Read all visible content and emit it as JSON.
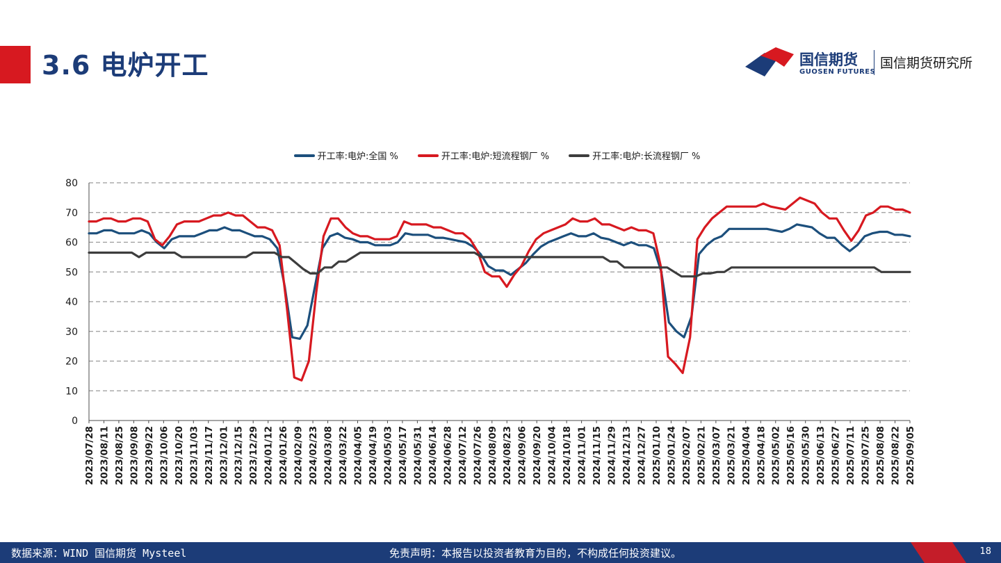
{
  "header": {
    "title": "3.6 电炉开工",
    "logo_cn": "国信期货",
    "logo_en": "GUOSEN FUTURES",
    "institute": "国信期货研究所",
    "brand_color": "#1c3c78",
    "accent_color": "#d71920"
  },
  "footer": {
    "source": "数据来源：WIND 国信期货 Mysteel",
    "disclaimer": "免责声明：本报告以投资者教育为目的，不构成任何投资建议。",
    "page_number": "18"
  },
  "chart_data": {
    "type": "line",
    "title": "",
    "xlabel": "",
    "ylabel": "",
    "ylim": [
      0,
      80
    ],
    "yticks": [
      0,
      10,
      20,
      30,
      40,
      50,
      60,
      70,
      80
    ],
    "grid": "horizontal dashed",
    "legend_position": "top",
    "x_tick_labels": [
      "2023/07/28",
      "2023/08/11",
      "2023/08/25",
      "2023/09/08",
      "2023/09/22",
      "2023/10/06",
      "2023/10/20",
      "2023/11/03",
      "2023/11/17",
      "2023/12/01",
      "2023/12/15",
      "2023/12/29",
      "2024/01/12",
      "2024/01/26",
      "2024/02/09",
      "2024/02/23",
      "2024/03/08",
      "2024/03/22",
      "2024/04/05",
      "2024/04/19",
      "2024/05/03",
      "2024/05/17",
      "2024/05/31",
      "2024/06/14",
      "2024/06/28",
      "2024/07/12",
      "2024/07/26",
      "2024/08/09",
      "2024/08/23",
      "2024/09/06",
      "2024/09/20",
      "2024/10/04",
      "2024/10/18",
      "2024/11/01",
      "2024/11/15",
      "2024/11/29",
      "2024/12/13",
      "2024/12/27",
      "2025/01/10",
      "2025/01/24",
      "2025/02/07",
      "2025/02/21",
      "2025/03/07",
      "2025/03/21",
      "2025/04/04",
      "2025/04/18",
      "2025/05/02",
      "2025/05/16",
      "2025/05/30",
      "2025/06/13",
      "2025/06/27",
      "2025/07/11",
      "2025/07/25",
      "2025/08/08",
      "2025/08/22",
      "2025/09/05"
    ],
    "series": [
      {
        "name": "开工率:电炉:全国 %",
        "color": "#1c4f7c",
        "values": [
          63,
          63,
          64,
          64,
          63,
          63,
          63,
          64,
          63,
          60,
          58,
          61,
          62,
          62,
          62,
          63,
          64,
          64,
          65,
          64,
          64,
          63,
          62,
          62,
          61,
          58,
          45,
          28,
          27.5,
          32,
          45,
          58,
          62,
          63,
          61.5,
          61,
          60,
          60,
          59,
          59,
          59,
          60,
          63,
          62.5,
          62.5,
          62.5,
          61.5,
          61.5,
          61,
          60.5,
          60,
          58.5,
          56,
          52,
          50.5,
          50.5,
          49,
          51,
          53,
          56,
          58.5,
          60,
          61,
          62,
          63,
          62,
          62,
          63,
          61.5,
          61,
          60,
          59,
          60,
          59,
          59,
          58,
          50,
          33,
          30,
          28,
          35,
          56,
          59,
          61,
          62,
          64.5,
          64.5,
          64.5,
          64.5,
          64.5,
          64.5,
          64,
          63.5,
          64.5,
          66,
          65.5,
          65,
          63,
          61.5,
          61.5,
          59,
          57,
          59,
          62,
          63,
          63.5,
          63.5,
          62.5,
          62.5,
          62
        ]
      },
      {
        "name": "开工率:电炉:短流程钢厂 %",
        "color": "#d71920",
        "values": [
          67,
          67,
          68,
          68,
          67,
          67,
          68,
          68,
          67,
          61,
          59,
          62,
          66,
          67,
          67,
          67,
          68,
          69,
          69,
          70,
          69,
          69,
          67,
          65,
          65,
          64,
          59,
          38,
          14.5,
          13.5,
          20,
          43,
          62,
          68,
          68,
          65,
          63,
          62,
          62,
          61,
          61,
          61,
          62,
          67,
          66,
          66,
          66,
          65,
          65,
          64,
          63,
          63,
          61,
          57,
          50,
          48.5,
          48.5,
          45,
          49,
          52,
          57,
          61,
          63,
          64,
          65,
          66,
          68,
          67,
          67,
          68,
          66,
          66,
          65,
          64,
          65,
          64,
          64,
          63,
          52,
          21.5,
          19,
          16,
          28,
          61,
          65,
          68,
          70,
          72,
          72,
          72,
          72,
          72,
          73,
          72,
          71.5,
          71,
          73,
          75,
          74,
          73,
          70,
          68,
          68,
          64,
          60.5,
          64,
          69,
          70,
          72,
          72,
          71,
          71,
          70
        ]
      },
      {
        "name": "开工率:电炉:长流程钢厂 %",
        "color": "#3d3d3d",
        "values": [
          56.5,
          56.5,
          56.5,
          56.5,
          56.5,
          56.5,
          56.5,
          55,
          56.5,
          56.5,
          56.5,
          56.5,
          56.5,
          55,
          55,
          55,
          55,
          55,
          55,
          55,
          55,
          55,
          55,
          56.5,
          56.5,
          56.5,
          56.5,
          55,
          55,
          53,
          51,
          49.5,
          49.5,
          51.5,
          51.5,
          53.5,
          53.5,
          55,
          56.5,
          56.5,
          56.5,
          56.5,
          56.5,
          56.5,
          56.5,
          56.5,
          56.5,
          56.5,
          56.5,
          56.5,
          56.5,
          56.5,
          56.5,
          56.5,
          56.5,
          55,
          55,
          55,
          55,
          55,
          55,
          55,
          55,
          55,
          55,
          55,
          55,
          55,
          55,
          55,
          55,
          55,
          55,
          53.5,
          53.5,
          51.5,
          51.5,
          51.5,
          51.5,
          51.5,
          51.5,
          51.5,
          50,
          48.5,
          48.5,
          48.5,
          49.5,
          49.5,
          50,
          50,
          51.5,
          51.5,
          51.5,
          51.5,
          51.5,
          51.5,
          51.5,
          51.5,
          51.5,
          51.5,
          51.5,
          51.5,
          51.5,
          51.5,
          51.5,
          51.5,
          51.5,
          51.5,
          51.5,
          51.5,
          51.5,
          50,
          50,
          50,
          50,
          50
        ]
      }
    ]
  }
}
